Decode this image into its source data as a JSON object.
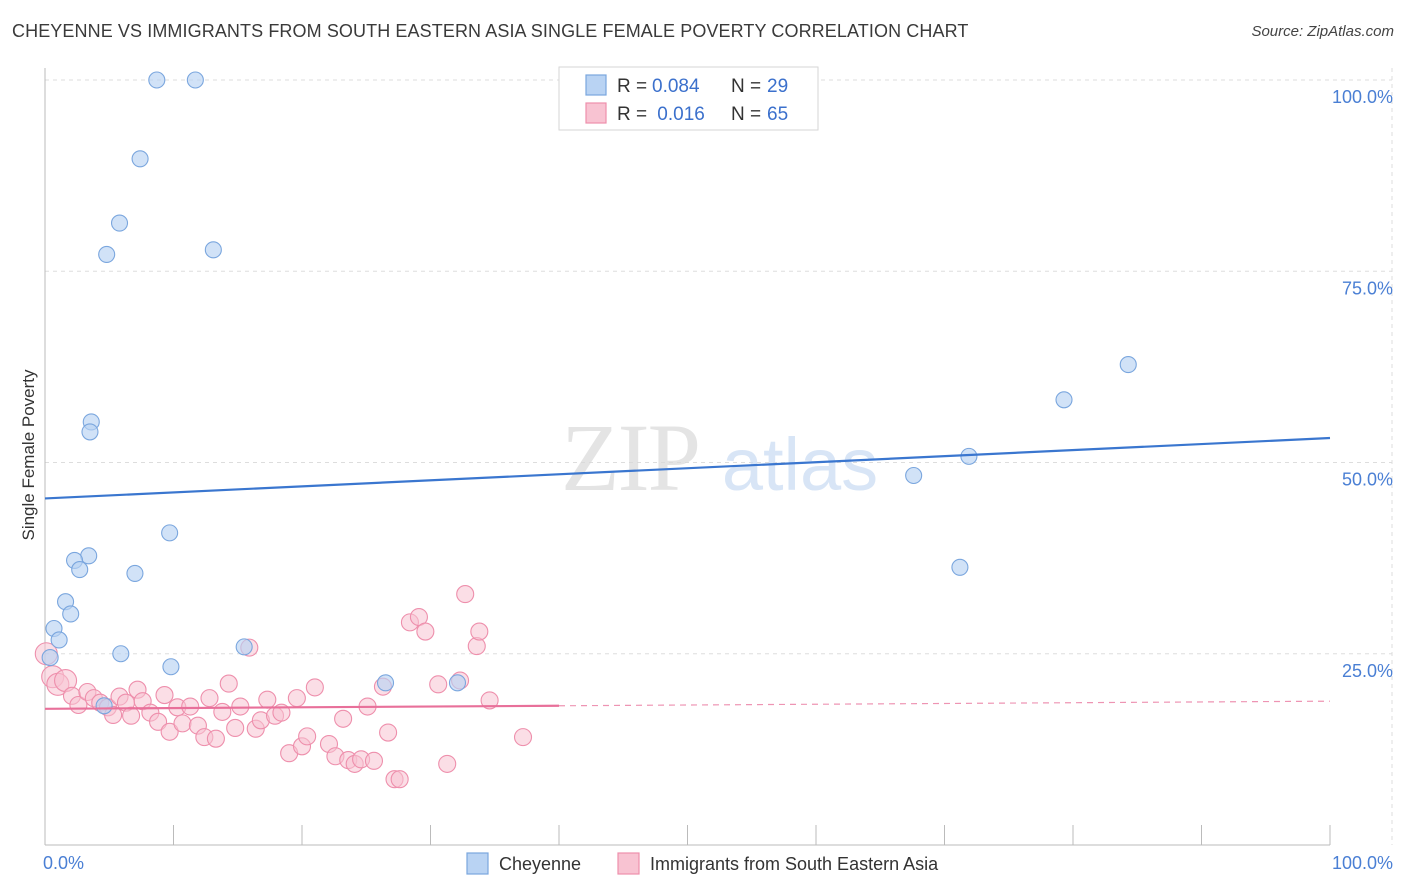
{
  "title": "CHEYENNE VS IMMIGRANTS FROM SOUTH EASTERN ASIA SINGLE FEMALE POVERTY CORRELATION CHART",
  "source": "Source: ZipAtlas.com",
  "watermark": {
    "zip": "ZIP",
    "atlas": "atlas"
  },
  "colors": {
    "series1_fill": "#b9d3f3",
    "series1_stroke": "#7aa6de",
    "series1_line": "#3a76cf",
    "series2_fill": "#f8c3d2",
    "series2_stroke": "#ee8fac",
    "series2_line": "#e8709a",
    "axis_label": "#4a7fd4",
    "grid": "#dddddd"
  },
  "chart_data": {
    "type": "scatter",
    "title": "CHEYENNE VS IMMIGRANTS FROM SOUTH EASTERN ASIA SINGLE FEMALE POVERTY CORRELATION CHART",
    "xlabel": "",
    "ylabel": "Single Female Poverty",
    "xlim": [
      0,
      100
    ],
    "ylim": [
      0,
      100
    ],
    "x_tick_labels": [
      {
        "value": 0,
        "label": "0.0%"
      },
      {
        "value": 100,
        "label": "100.0%"
      }
    ],
    "y_tick_labels": [
      {
        "value": 25,
        "label": "25.0%"
      },
      {
        "value": 50,
        "label": "50.0%"
      },
      {
        "value": 75,
        "label": "75.0%"
      },
      {
        "value": 100,
        "label": "100.0%"
      }
    ],
    "legend": [
      {
        "name": "Cheyenne",
        "r_label": "R = ",
        "r": "0.084",
        "n_label": "N = ",
        "n": "29"
      },
      {
        "name": "Immigrants from South Eastern Asia",
        "r_label": "R = ",
        "r": " 0.016",
        "n_label": "N = ",
        "n": "65"
      }
    ],
    "series": [
      {
        "name": "Cheyenne",
        "trend": {
          "x0": 0,
          "y0": 45.3,
          "x1": 100,
          "y1": 53.2,
          "dashed_from": null
        },
        "points": [
          [
            8.7,
            100
          ],
          [
            11.7,
            100
          ],
          [
            7.4,
            89.7
          ],
          [
            5.8,
            81.3
          ],
          [
            4.8,
            77.2
          ],
          [
            13.1,
            77.8
          ],
          [
            3.6,
            55.3
          ],
          [
            3.5,
            54.0
          ],
          [
            3.4,
            37.8
          ],
          [
            2.3,
            37.2
          ],
          [
            2.7,
            36.0
          ],
          [
            7.0,
            35.5
          ],
          [
            9.7,
            40.8
          ],
          [
            1.6,
            31.8
          ],
          [
            2.0,
            30.2
          ],
          [
            0.7,
            28.3
          ],
          [
            1.1,
            26.8
          ],
          [
            0.4,
            24.5
          ],
          [
            4.6,
            18.2
          ],
          [
            5.9,
            25.0
          ],
          [
            9.8,
            23.3
          ],
          [
            15.5,
            25.9
          ],
          [
            26.5,
            21.2
          ],
          [
            32.1,
            21.2
          ],
          [
            67.6,
            48.3
          ],
          [
            71.2,
            36.3
          ],
          [
            71.9,
            50.8
          ],
          [
            79.3,
            58.2
          ],
          [
            84.3,
            62.8
          ]
        ]
      },
      {
        "name": "Immigrants from South Eastern Asia",
        "trend": {
          "x0": 0,
          "y0": 17.8,
          "x1": 100,
          "y1": 18.8,
          "dashed_from": 40
        },
        "points": [
          [
            0.1,
            25.0
          ],
          [
            0.6,
            22.0
          ],
          [
            1.0,
            21.0
          ],
          [
            1.6,
            21.5
          ],
          [
            2.1,
            19.5
          ],
          [
            2.6,
            18.3
          ],
          [
            3.3,
            20.0
          ],
          [
            3.8,
            19.2
          ],
          [
            4.3,
            18.6
          ],
          [
            4.9,
            18.0
          ],
          [
            5.3,
            17.0
          ],
          [
            5.8,
            19.4
          ],
          [
            6.3,
            18.6
          ],
          [
            6.7,
            16.9
          ],
          [
            7.2,
            20.3
          ],
          [
            7.6,
            18.8
          ],
          [
            8.2,
            17.3
          ],
          [
            8.8,
            16.1
          ],
          [
            9.3,
            19.6
          ],
          [
            9.7,
            14.8
          ],
          [
            10.3,
            18.0
          ],
          [
            10.7,
            15.9
          ],
          [
            11.3,
            18.1
          ],
          [
            11.9,
            15.6
          ],
          [
            12.4,
            14.1
          ],
          [
            12.8,
            19.2
          ],
          [
            13.3,
            13.9
          ],
          [
            13.8,
            17.4
          ],
          [
            14.3,
            21.1
          ],
          [
            14.8,
            15.3
          ],
          [
            15.2,
            18.1
          ],
          [
            15.9,
            25.8
          ],
          [
            16.4,
            15.2
          ],
          [
            16.8,
            16.3
          ],
          [
            17.3,
            19.0
          ],
          [
            17.9,
            16.9
          ],
          [
            18.4,
            17.3
          ],
          [
            19.0,
            12.0
          ],
          [
            19.6,
            19.2
          ],
          [
            20.0,
            12.9
          ],
          [
            20.4,
            14.2
          ],
          [
            21.0,
            20.6
          ],
          [
            22.1,
            13.2
          ],
          [
            22.6,
            11.6
          ],
          [
            23.2,
            16.5
          ],
          [
            23.6,
            11.1
          ],
          [
            24.1,
            10.6
          ],
          [
            24.6,
            11.2
          ],
          [
            25.1,
            18.1
          ],
          [
            25.6,
            11.0
          ],
          [
            26.3,
            20.7
          ],
          [
            26.7,
            14.7
          ],
          [
            27.2,
            8.6
          ],
          [
            27.6,
            8.6
          ],
          [
            28.4,
            29.1
          ],
          [
            29.1,
            29.8
          ],
          [
            29.6,
            27.9
          ],
          [
            30.6,
            21.0
          ],
          [
            31.3,
            10.6
          ],
          [
            32.3,
            21.5
          ],
          [
            32.7,
            32.8
          ],
          [
            33.6,
            26.0
          ],
          [
            33.8,
            27.9
          ],
          [
            34.6,
            18.9
          ],
          [
            37.2,
            14.1
          ]
        ]
      }
    ]
  }
}
